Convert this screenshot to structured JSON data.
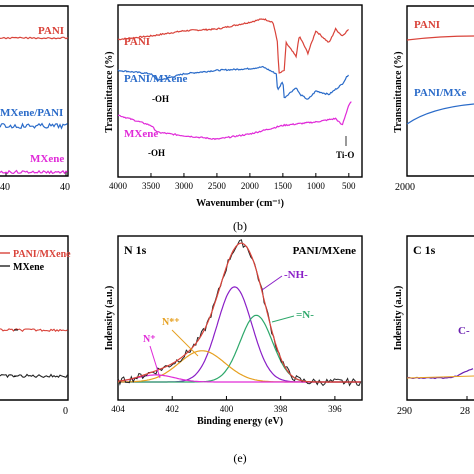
{
  "colors": {
    "pani": "#d9433a",
    "pani_mxene": "#2a6bc9",
    "mxene": "#e02ad8",
    "mxene_xrd": "#222222",
    "nh": "#8a1fc7",
    "eq_n": "#2ea86b",
    "n_star": "#e6a020",
    "n_plus": "#e02ad8",
    "c1s": "#6a1fb0"
  },
  "panels": {
    "left_top": {
      "labels": {
        "pani": "PANI",
        "mxene_pani": "MXene/PANI",
        "mxene": "MXene"
      },
      "xtick": "40"
    },
    "b": {
      "caption": "(b)",
      "ylabel": "Transmittance (%)",
      "xlabel": "Wavenumber (cm⁻¹)",
      "labels": {
        "pani": "PANI",
        "pani_mxene": "PANI/MXene",
        "mxene": "MXene",
        "oh1": "-OH",
        "oh2": "-OH",
        "tio": "Ti-O"
      },
      "xticks": [
        "4000",
        "3500",
        "3000",
        "2500",
        "2000",
        "1500",
        "1000",
        "500"
      ]
    },
    "right_top": {
      "ylabel": "Transmittance (%)",
      "labels": {
        "pani": "PANI",
        "pani_mxene": "PANI/MXe"
      },
      "xtick": "2000"
    },
    "left_bottom": {
      "legend": {
        "pani_mxene": "PANI/MXene",
        "mxene": "MXene"
      },
      "xticks": [
        "0"
      ]
    },
    "e": {
      "caption": "(e)",
      "title": "N 1s",
      "sample": "PANI/MXene",
      "ylabel": "Indensity (a.u.)",
      "xlabel": "Binding energy (eV)",
      "labels": {
        "nh": "-NH-",
        "eq_n": "=N-",
        "n_star": "N*⁺",
        "n_plus": "N⁺"
      },
      "xticks": [
        "404",
        "402",
        "400",
        "398",
        "396"
      ]
    },
    "right_bottom": {
      "title": "C 1s",
      "ylabel": "Indensity (a.u.)",
      "label": "C-",
      "xticks": [
        "290",
        "28"
      ]
    }
  },
  "chart_data": [
    {
      "type": "line",
      "panel": "(b)",
      "xlabel": "Wavenumber (cm⁻¹)",
      "ylabel": "Transmittance (%)",
      "xlim": [
        4000,
        400
      ],
      "series": [
        {
          "name": "PANI",
          "x": [
            4000,
            3500,
            3000,
            2500,
            2000,
            1800,
            1650,
            1580,
            1560,
            1480,
            1450,
            1300,
            1250,
            1120,
            1000,
            800,
            700,
            600,
            500
          ],
          "y": [
            0.8,
            0.82,
            0.85,
            0.86,
            0.9,
            0.92,
            0.9,
            0.78,
            0.6,
            0.62,
            0.78,
            0.7,
            0.82,
            0.72,
            0.85,
            0.78,
            0.86,
            0.82,
            0.86
          ]
        },
        {
          "name": "PANI/MXene",
          "x": [
            4000,
            3500,
            3400,
            3000,
            2500,
            2000,
            1800,
            1600,
            1580,
            1500,
            1480,
            1300,
            1240,
            1120,
            1000,
            800,
            600,
            500
          ],
          "y": [
            0.62,
            0.6,
            0.56,
            0.6,
            0.62,
            0.63,
            0.64,
            0.6,
            0.5,
            0.56,
            0.46,
            0.52,
            0.48,
            0.45,
            0.5,
            0.48,
            0.54,
            0.6
          ]
        },
        {
          "name": "MXene",
          "x": [
            4000,
            3500,
            3400,
            3000,
            2500,
            2000,
            1500,
            1000,
            700,
            600,
            550,
            500,
            450
          ],
          "y": [
            0.36,
            0.3,
            0.26,
            0.24,
            0.22,
            0.25,
            0.3,
            0.32,
            0.34,
            0.3,
            0.36,
            0.42,
            0.44
          ]
        }
      ]
    },
    {
      "type": "line",
      "panel": "(e)",
      "title": "N 1s",
      "xlabel": "Binding energy (eV)",
      "ylabel": "Indensity (a.u.)",
      "xlim": [
        404,
        395
      ],
      "series": [
        {
          "name": "-NH-",
          "center": 399.7,
          "height": 0.67,
          "fwhm": 1.5
        },
        {
          "name": "=N-",
          "center": 398.9,
          "height": 0.47,
          "fwhm": 1.4
        },
        {
          "name": "N*⁺",
          "center": 400.9,
          "height": 0.22,
          "fwhm": 2.0
        },
        {
          "name": "N⁺",
          "center": 402.6,
          "height": 0.05,
          "fwhm": 1.6
        }
      ]
    }
  ]
}
